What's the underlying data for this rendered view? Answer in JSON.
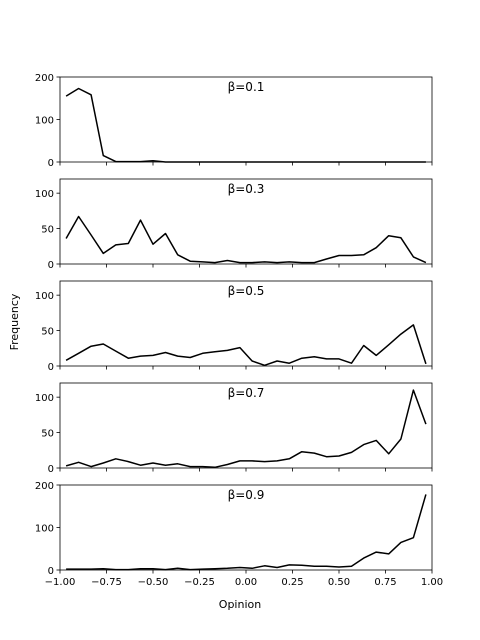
{
  "figure": {
    "xlabel": "Opinion",
    "ylabel": "Frequency"
  },
  "chart_data": {
    "type": "line",
    "xlim": [
      -1.0,
      1.0
    ],
    "xticks": [
      "-1.00",
      "-0.75",
      "-0.50",
      "-0.25",
      "0.00",
      "0.25",
      "0.50",
      "0.75",
      "1.00"
    ],
    "x": [
      -0.967,
      -0.9,
      -0.833,
      -0.767,
      -0.7,
      -0.633,
      -0.567,
      -0.5,
      -0.433,
      -0.367,
      -0.3,
      -0.233,
      -0.167,
      -0.1,
      -0.033,
      0.033,
      0.1,
      0.167,
      0.233,
      0.3,
      0.367,
      0.433,
      0.5,
      0.567,
      0.633,
      0.7,
      0.767,
      0.833,
      0.9,
      0.967
    ],
    "panels": [
      {
        "label": "β=0.1",
        "ylim": [
          0,
          200
        ],
        "yticks": [
          0,
          100,
          200
        ],
        "values": [
          155,
          173,
          158,
          15,
          1,
          1,
          1,
          3,
          0,
          0,
          0,
          0,
          0,
          0,
          0,
          0,
          0,
          0,
          0,
          0,
          0,
          0,
          0,
          0,
          0,
          0,
          0,
          0,
          0,
          0
        ]
      },
      {
        "label": "β=0.3",
        "ylim": [
          0,
          120
        ],
        "yticks": [
          0,
          50,
          100
        ],
        "values": [
          36,
          67,
          41,
          15,
          27,
          29,
          62,
          28,
          43,
          13,
          4,
          3,
          2,
          5,
          2,
          2,
          3,
          2,
          3,
          2,
          2,
          7,
          12,
          12,
          13,
          23,
          40,
          37,
          10,
          2
        ]
      },
      {
        "label": "β=0.5",
        "ylim": [
          0,
          120
        ],
        "yticks": [
          0,
          50,
          100
        ],
        "values": [
          8,
          18,
          28,
          31,
          21,
          11,
          14,
          15,
          19,
          14,
          12,
          18,
          20,
          22,
          26,
          7,
          1,
          7,
          4,
          11,
          13,
          10,
          10,
          4,
          29,
          15,
          30,
          45,
          58,
          3
        ]
      },
      {
        "label": "β=0.7",
        "ylim": [
          0,
          120
        ],
        "yticks": [
          0,
          50,
          100
        ],
        "values": [
          3,
          8,
          2,
          7,
          13,
          9,
          4,
          7,
          4,
          6,
          2,
          2,
          1,
          5,
          10,
          10,
          9,
          10,
          13,
          23,
          21,
          16,
          17,
          22,
          33,
          39,
          20,
          41,
          110,
          62
        ]
      },
      {
        "label": "β=0.9",
        "ylim": [
          0,
          200
        ],
        "yticks": [
          0,
          100,
          200
        ],
        "values": [
          2,
          2,
          2,
          3,
          1,
          1,
          3,
          3,
          1,
          4,
          1,
          2,
          3,
          4,
          6,
          4,
          10,
          6,
          12,
          11,
          9,
          9,
          7,
          9,
          28,
          42,
          38,
          65,
          76,
          178
        ]
      }
    ]
  }
}
